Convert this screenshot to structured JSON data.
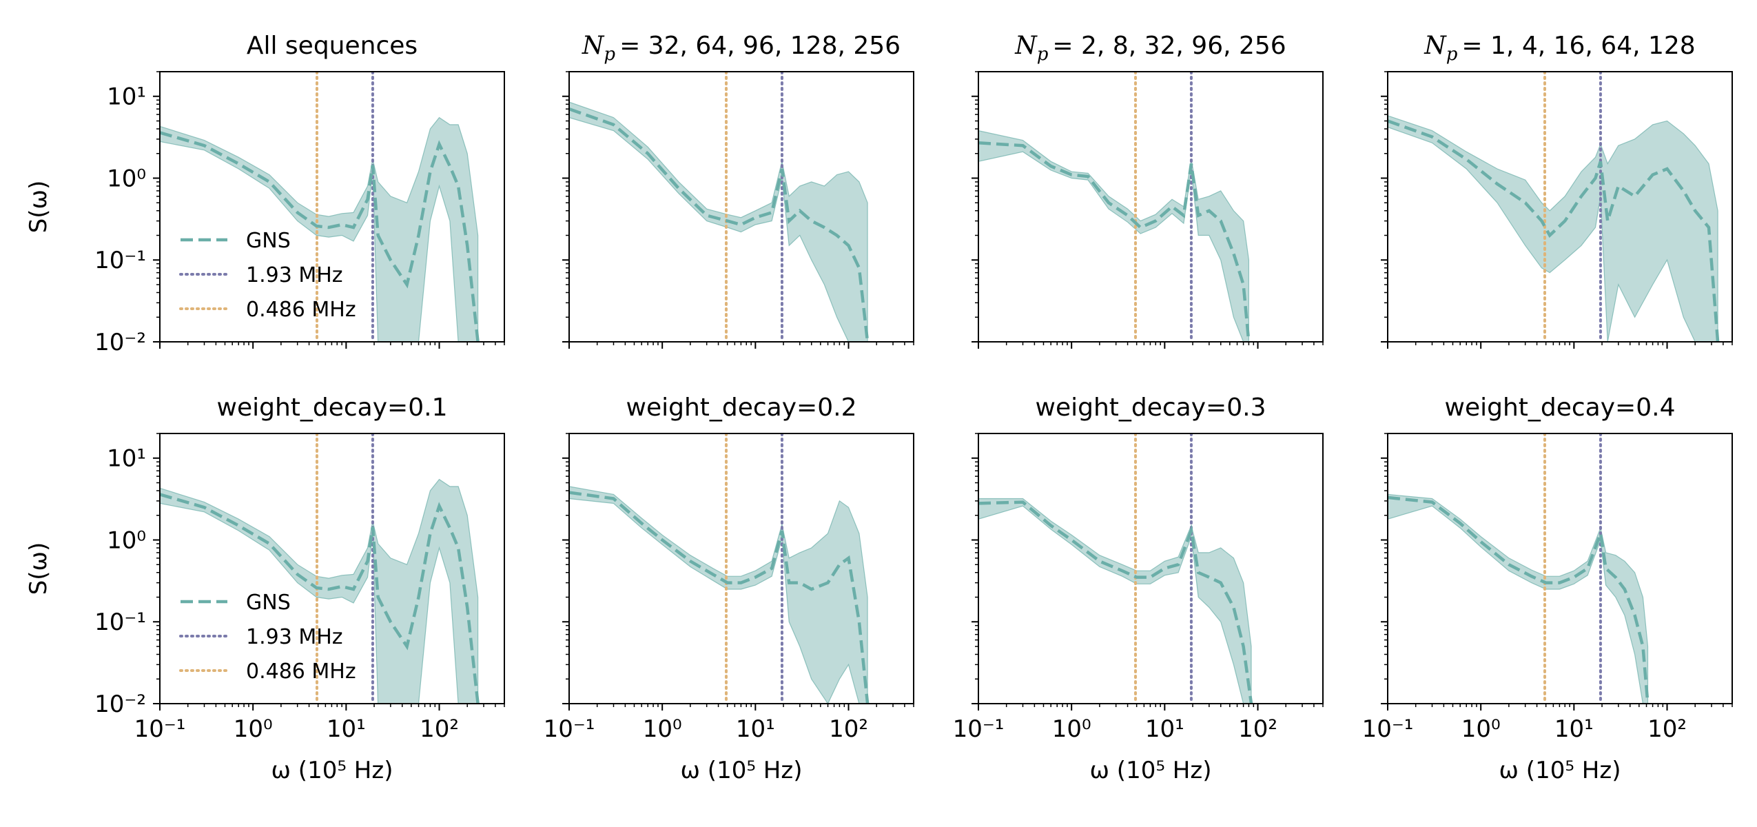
{
  "figure": {
    "layout": "2 rows x 4 columns",
    "x_axis_label": "ω (10⁵ Hz)",
    "y_axis_label": "S(ω)"
  },
  "colors": {
    "gns": "#6aaea8",
    "band": "#a9cfcc",
    "line_193": "#7b7bab",
    "line_0486": "#dfb478"
  },
  "chart_data": [
    {
      "type": "line",
      "panel": "top-1",
      "title": "All sequences",
      "xlabel": "",
      "ylabel": "S(ω)",
      "xscale": "log",
      "yscale": "log",
      "xlim": [
        0.1,
        500
      ],
      "ylim": [
        0.01,
        20
      ],
      "x_tick_labels": [
        "10⁻¹",
        "10⁰",
        "10¹",
        "10²"
      ],
      "y_tick_labels": [
        "10⁻²",
        "10⁻¹",
        "10⁰",
        "10¹"
      ],
      "legend": {
        "placement": "lower-left",
        "entries": [
          "GNS",
          "1.93 MHz",
          "0.486 MHz"
        ]
      },
      "vlines": [
        {
          "label": "1.93 MHz",
          "x": 19.3,
          "style": "dotted"
        },
        {
          "label": "0.486 MHz",
          "x": 4.86,
          "style": "dotted"
        }
      ],
      "series": [
        {
          "name": "GNS",
          "style": "dashed",
          "x": [
            0.1,
            0.3,
            0.7,
            1.5,
            3,
            4.8,
            6.5,
            9,
            12,
            17,
            19.3,
            22,
            30,
            45,
            60,
            80,
            100,
            130,
            160,
            200,
            260
          ],
          "y": [
            3.6,
            2.5,
            1.5,
            0.9,
            0.38,
            0.26,
            0.25,
            0.27,
            0.25,
            0.55,
            1.45,
            0.2,
            0.1,
            0.05,
            0.2,
            1.2,
            2.6,
            1.4,
            0.8,
            0.15,
            0.01
          ],
          "upper": [
            4.3,
            2.9,
            1.8,
            1.1,
            0.5,
            0.36,
            0.34,
            0.37,
            0.38,
            0.8,
            1.7,
            0.9,
            0.6,
            0.5,
            1.2,
            4.0,
            5.5,
            4.5,
            4.5,
            2.0,
            0.2
          ],
          "lower": [
            2.8,
            2.2,
            1.3,
            0.75,
            0.3,
            0.2,
            0.19,
            0.2,
            0.17,
            0.35,
            1.2,
            0.01,
            0.01,
            0.01,
            0.01,
            0.3,
            0.8,
            0.3,
            0.01,
            0.01,
            0.01
          ]
        }
      ]
    },
    {
      "type": "line",
      "panel": "top-2",
      "title_prefix": "N",
      "title_sub": "p",
      "title_values": "= 32, 64, 96, 128, 256",
      "xlabel": "",
      "ylabel": "",
      "xscale": "log",
      "yscale": "log",
      "xlim": [
        0.1,
        500
      ],
      "ylim": [
        0.01,
        20
      ],
      "x_tick_labels": [
        "10⁻¹",
        "10⁰",
        "10¹",
        "10²"
      ],
      "y_tick_labels": [],
      "vlines": [
        {
          "label": "1.93 MHz",
          "x": 19.3,
          "style": "dotted"
        },
        {
          "label": "0.486 MHz",
          "x": 4.86,
          "style": "dotted"
        }
      ],
      "series": [
        {
          "name": "GNS",
          "style": "dashed",
          "x": [
            0.1,
            0.3,
            0.7,
            1.5,
            3,
            5,
            7,
            10,
            15,
            19.3,
            23,
            30,
            40,
            55,
            75,
            100,
            130,
            160
          ],
          "y": [
            7,
            4.5,
            2.0,
            0.75,
            0.35,
            0.3,
            0.27,
            0.33,
            0.38,
            1.3,
            0.3,
            0.4,
            0.3,
            0.25,
            0.2,
            0.15,
            0.08,
            0.01
          ],
          "upper": [
            8.5,
            5.5,
            2.4,
            0.9,
            0.42,
            0.36,
            0.33,
            0.4,
            0.5,
            1.6,
            0.6,
            0.8,
            0.9,
            0.8,
            1.1,
            1.2,
            0.9,
            0.5
          ],
          "lower": [
            5.5,
            3.8,
            1.7,
            0.65,
            0.3,
            0.25,
            0.22,
            0.27,
            0.3,
            1.0,
            0.15,
            0.2,
            0.1,
            0.05,
            0.02,
            0.01,
            0.01,
            0.01
          ]
        }
      ]
    },
    {
      "type": "line",
      "panel": "top-3",
      "title_prefix": "N",
      "title_sub": "p",
      "title_values": "= 2, 8, 32, 96, 256",
      "xlabel": "",
      "ylabel": "",
      "xscale": "log",
      "yscale": "log",
      "xlim": [
        0.1,
        500
      ],
      "ylim": [
        0.01,
        20
      ],
      "x_tick_labels": [
        "10⁻¹",
        "10⁰",
        "10¹",
        "10²"
      ],
      "y_tick_labels": [],
      "vlines": [
        {
          "label": "1.93 MHz",
          "x": 19.3,
          "style": "dotted"
        },
        {
          "label": "0.486 MHz",
          "x": 4.86,
          "style": "dotted"
        }
      ],
      "series": [
        {
          "name": "GNS",
          "style": "dashed",
          "x": [
            0.1,
            0.3,
            0.6,
            1.0,
            1.5,
            2.5,
            4,
            5.5,
            8,
            12,
            16,
            19.3,
            23,
            30,
            40,
            55,
            70,
            80
          ],
          "y": [
            2.7,
            2.5,
            1.4,
            1.1,
            1.05,
            0.5,
            0.35,
            0.25,
            0.3,
            0.45,
            0.35,
            1.5,
            0.35,
            0.4,
            0.3,
            0.12,
            0.05,
            0.01
          ],
          "upper": [
            3.8,
            2.9,
            1.6,
            1.2,
            1.15,
            0.6,
            0.42,
            0.3,
            0.36,
            0.55,
            0.45,
            1.7,
            0.55,
            0.6,
            0.7,
            0.4,
            0.3,
            0.1
          ],
          "lower": [
            1.6,
            2.1,
            1.25,
            1.0,
            0.95,
            0.42,
            0.29,
            0.21,
            0.25,
            0.37,
            0.28,
            1.25,
            0.2,
            0.2,
            0.1,
            0.02,
            0.01,
            0.01
          ]
        }
      ]
    },
    {
      "type": "line",
      "panel": "top-4",
      "title_prefix": "N",
      "title_sub": "p",
      "title_values": "= 1, 4, 16, 64, 128",
      "xlabel": "",
      "ylabel": "",
      "xscale": "log",
      "yscale": "log",
      "xlim": [
        0.1,
        500
      ],
      "ylim": [
        0.01,
        20
      ],
      "x_tick_labels": [
        "10⁻¹",
        "10⁰",
        "10¹",
        "10²"
      ],
      "y_tick_labels": [],
      "vlines": [
        {
          "label": "1.93 MHz",
          "x": 19.3,
          "style": "dotted"
        },
        {
          "label": "0.486 MHz",
          "x": 4.86,
          "style": "dotted"
        }
      ],
      "series": [
        {
          "name": "GNS",
          "style": "dashed",
          "x": [
            0.1,
            0.3,
            0.7,
            1.5,
            3,
            4.5,
            5.5,
            8,
            12,
            17,
            19.3,
            23,
            30,
            45,
            70,
            100,
            150,
            200,
            280,
            350
          ],
          "y": [
            5,
            3.2,
            1.7,
            0.85,
            0.5,
            0.3,
            0.2,
            0.3,
            0.6,
            1.0,
            1.6,
            0.3,
            0.8,
            0.6,
            1.1,
            1.3,
            0.7,
            0.4,
            0.25,
            0.01
          ],
          "upper": [
            5.8,
            3.8,
            2.1,
            1.3,
            0.95,
            0.5,
            0.4,
            0.6,
            1.2,
            1.8,
            2.6,
            1.5,
            2.5,
            3.0,
            4.5,
            5.0,
            3.5,
            2.5,
            1.5,
            0.4
          ],
          "lower": [
            4.2,
            2.7,
            1.3,
            0.5,
            0.15,
            0.08,
            0.07,
            0.1,
            0.15,
            0.25,
            0.6,
            0.01,
            0.05,
            0.02,
            0.05,
            0.1,
            0.02,
            0.01,
            0.01,
            0.01
          ]
        }
      ]
    },
    {
      "type": "line",
      "panel": "bottom-1",
      "title": "weight_decay=0.1",
      "xlabel": "ω (10⁵ Hz)",
      "ylabel": "S(ω)",
      "xscale": "log",
      "yscale": "log",
      "xlim": [
        0.1,
        500
      ],
      "ylim": [
        0.01,
        20
      ],
      "x_tick_labels": [
        "10⁻¹",
        "10⁰",
        "10¹",
        "10²"
      ],
      "y_tick_labels": [
        "10⁻²",
        "10⁻¹",
        "10⁰",
        "10¹"
      ],
      "legend": {
        "placement": "lower-left",
        "entries": [
          "GNS",
          "1.93 MHz",
          "0.486 MHz"
        ]
      },
      "vlines": [
        {
          "label": "1.93 MHz",
          "x": 19.3,
          "style": "dotted"
        },
        {
          "label": "0.486 MHz",
          "x": 4.86,
          "style": "dotted"
        }
      ],
      "series": [
        {
          "name": "GNS",
          "style": "dashed",
          "x": [
            0.1,
            0.3,
            0.7,
            1.5,
            3,
            4.8,
            6.5,
            9,
            12,
            17,
            19.3,
            22,
            30,
            45,
            60,
            80,
            100,
            130,
            160,
            200,
            260
          ],
          "y": [
            3.6,
            2.5,
            1.5,
            0.9,
            0.38,
            0.26,
            0.25,
            0.27,
            0.25,
            0.55,
            1.45,
            0.2,
            0.1,
            0.05,
            0.2,
            1.2,
            2.6,
            1.4,
            0.8,
            0.15,
            0.01
          ],
          "upper": [
            4.3,
            2.9,
            1.8,
            1.1,
            0.5,
            0.36,
            0.34,
            0.37,
            0.38,
            0.8,
            1.7,
            0.9,
            0.6,
            0.5,
            1.2,
            4.0,
            5.5,
            4.5,
            4.5,
            2.0,
            0.2
          ],
          "lower": [
            2.8,
            2.2,
            1.3,
            0.75,
            0.3,
            0.2,
            0.19,
            0.2,
            0.17,
            0.35,
            1.2,
            0.01,
            0.01,
            0.01,
            0.01,
            0.3,
            0.8,
            0.3,
            0.01,
            0.01,
            0.01
          ]
        }
      ]
    },
    {
      "type": "line",
      "panel": "bottom-2",
      "title": "weight_decay=0.2",
      "xlabel": "ω (10⁵ Hz)",
      "ylabel": "",
      "xscale": "log",
      "yscale": "log",
      "xlim": [
        0.1,
        500
      ],
      "ylim": [
        0.01,
        20
      ],
      "x_tick_labels": [
        "10⁻¹",
        "10⁰",
        "10¹",
        "10²"
      ],
      "y_tick_labels": [],
      "vlines": [
        {
          "label": "1.93 MHz",
          "x": 19.3,
          "style": "dotted"
        },
        {
          "label": "0.486 MHz",
          "x": 4.86,
          "style": "dotted"
        }
      ],
      "series": [
        {
          "name": "GNS",
          "style": "dashed",
          "x": [
            0.1,
            0.3,
            0.6,
            1.0,
            2,
            3.5,
            5,
            7,
            10,
            15,
            19.3,
            23,
            30,
            40,
            60,
            80,
            100,
            130,
            160
          ],
          "y": [
            3.8,
            3.2,
            1.6,
            1.0,
            0.55,
            0.38,
            0.3,
            0.3,
            0.35,
            0.45,
            1.3,
            0.3,
            0.3,
            0.25,
            0.3,
            0.5,
            0.6,
            0.1,
            0.01
          ],
          "upper": [
            4.5,
            3.6,
            1.85,
            1.15,
            0.65,
            0.45,
            0.36,
            0.36,
            0.42,
            0.55,
            1.55,
            0.6,
            0.7,
            0.8,
            1.2,
            3.0,
            2.5,
            1.2,
            0.2
          ],
          "lower": [
            3.2,
            2.8,
            1.4,
            0.88,
            0.47,
            0.32,
            0.25,
            0.25,
            0.28,
            0.36,
            1.05,
            0.1,
            0.05,
            0.02,
            0.01,
            0.02,
            0.03,
            0.01,
            0.01
          ]
        }
      ]
    },
    {
      "type": "line",
      "panel": "bottom-3",
      "title": "weight_decay=0.3",
      "xlabel": "ω (10⁵ Hz)",
      "ylabel": "",
      "xscale": "log",
      "yscale": "log",
      "xlim": [
        0.1,
        500
      ],
      "ylim": [
        0.01,
        20
      ],
      "x_tick_labels": [
        "10⁻¹",
        "10⁰",
        "10¹",
        "10²"
      ],
      "y_tick_labels": [],
      "vlines": [
        {
          "label": "1.93 MHz",
          "x": 19.3,
          "style": "dotted"
        },
        {
          "label": "0.486 MHz",
          "x": 4.86,
          "style": "dotted"
        }
      ],
      "series": [
        {
          "name": "GNS",
          "style": "dashed",
          "x": [
            0.1,
            0.3,
            0.6,
            1.0,
            2,
            3.5,
            5,
            7,
            10,
            14,
            19.3,
            23,
            30,
            40,
            55,
            70,
            85
          ],
          "y": [
            2.8,
            2.9,
            1.5,
            1.0,
            0.55,
            0.42,
            0.35,
            0.35,
            0.45,
            0.5,
            1.3,
            0.4,
            0.35,
            0.3,
            0.15,
            0.05,
            0.01
          ],
          "upper": [
            3.2,
            3.2,
            1.7,
            1.15,
            0.65,
            0.5,
            0.42,
            0.42,
            0.55,
            0.62,
            1.5,
            0.7,
            0.7,
            0.8,
            0.6,
            0.3,
            0.05
          ],
          "lower": [
            1.8,
            2.6,
            1.35,
            0.88,
            0.47,
            0.36,
            0.29,
            0.29,
            0.37,
            0.4,
            1.1,
            0.2,
            0.15,
            0.1,
            0.03,
            0.01,
            0.01
          ]
        }
      ]
    },
    {
      "type": "line",
      "panel": "bottom-4",
      "title": "weight_decay=0.4",
      "xlabel": "ω (10⁵ Hz)",
      "ylabel": "",
      "xscale": "log",
      "yscale": "log",
      "xlim": [
        0.1,
        500
      ],
      "ylim": [
        0.01,
        20
      ],
      "x_tick_labels": [
        "10⁻¹",
        "10⁰",
        "10¹",
        "10²"
      ],
      "y_tick_labels": [],
      "vlines": [
        {
          "label": "1.93 MHz",
          "x": 19.3,
          "style": "dotted"
        },
        {
          "label": "0.486 MHz",
          "x": 4.86,
          "style": "dotted"
        }
      ],
      "series": [
        {
          "name": "GNS",
          "style": "dashed",
          "x": [
            0.1,
            0.3,
            0.6,
            1.0,
            2,
            3.5,
            5,
            7,
            10,
            14,
            19.3,
            22,
            28,
            35,
            45,
            55,
            62
          ],
          "y": [
            3.3,
            2.9,
            1.6,
            0.95,
            0.5,
            0.36,
            0.3,
            0.3,
            0.35,
            0.45,
            1.2,
            0.45,
            0.35,
            0.25,
            0.12,
            0.05,
            0.01
          ],
          "upper": [
            3.6,
            3.2,
            1.8,
            1.1,
            0.6,
            0.43,
            0.36,
            0.36,
            0.42,
            0.55,
            1.4,
            0.7,
            0.65,
            0.55,
            0.4,
            0.2,
            0.05
          ],
          "lower": [
            1.8,
            2.6,
            1.4,
            0.82,
            0.42,
            0.3,
            0.25,
            0.25,
            0.29,
            0.37,
            1.0,
            0.28,
            0.2,
            0.12,
            0.04,
            0.01,
            0.01
          ]
        }
      ]
    }
  ]
}
